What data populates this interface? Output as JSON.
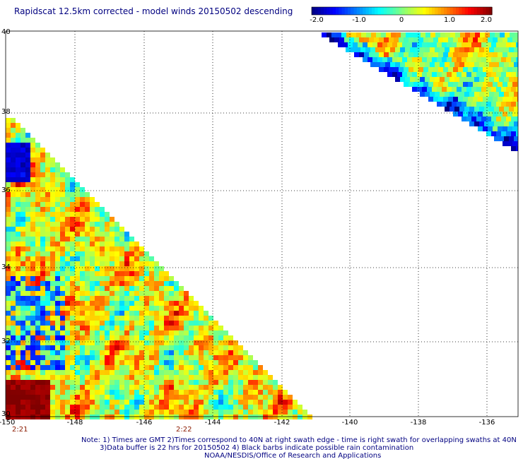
{
  "title": "Rapidscat 12.5km corrected - model winds 20150502 descending",
  "colorbar": {
    "tick_labels": [
      "-2.0",
      "-1.0",
      "0",
      "1.0",
      "2.0"
    ],
    "min": -2.0,
    "max": 2.0,
    "colors": [
      "#00007f",
      "#0000ff",
      "#007fff",
      "#00ffff",
      "#7fff7f",
      "#ffff00",
      "#ff7f00",
      "#ff0000",
      "#7f0000"
    ]
  },
  "map": {
    "lon_range": [
      -150,
      -135
    ],
    "lat_range": [
      30,
      40
    ],
    "x_ticks": [
      "-150",
      "-148",
      "-146",
      "-144",
      "-142",
      "-140",
      "-138",
      "-136"
    ],
    "y_ticks": [
      "40",
      "38",
      "36",
      "34",
      "32",
      "30"
    ],
    "grid": "dotted"
  },
  "swath_times": [
    "2:21",
    "2:22"
  ],
  "notes": [
    "Note: 1) Times are GMT 2)Times correspond to 40N at right swath edge - time is right swath for overlapping swaths at 40N",
    "3)Data buffer is 22 hrs for 20150502 4) Black barbs indicate possible rain contamination",
    "NOAA/NESDIS/Office of Research and Applications"
  ]
}
